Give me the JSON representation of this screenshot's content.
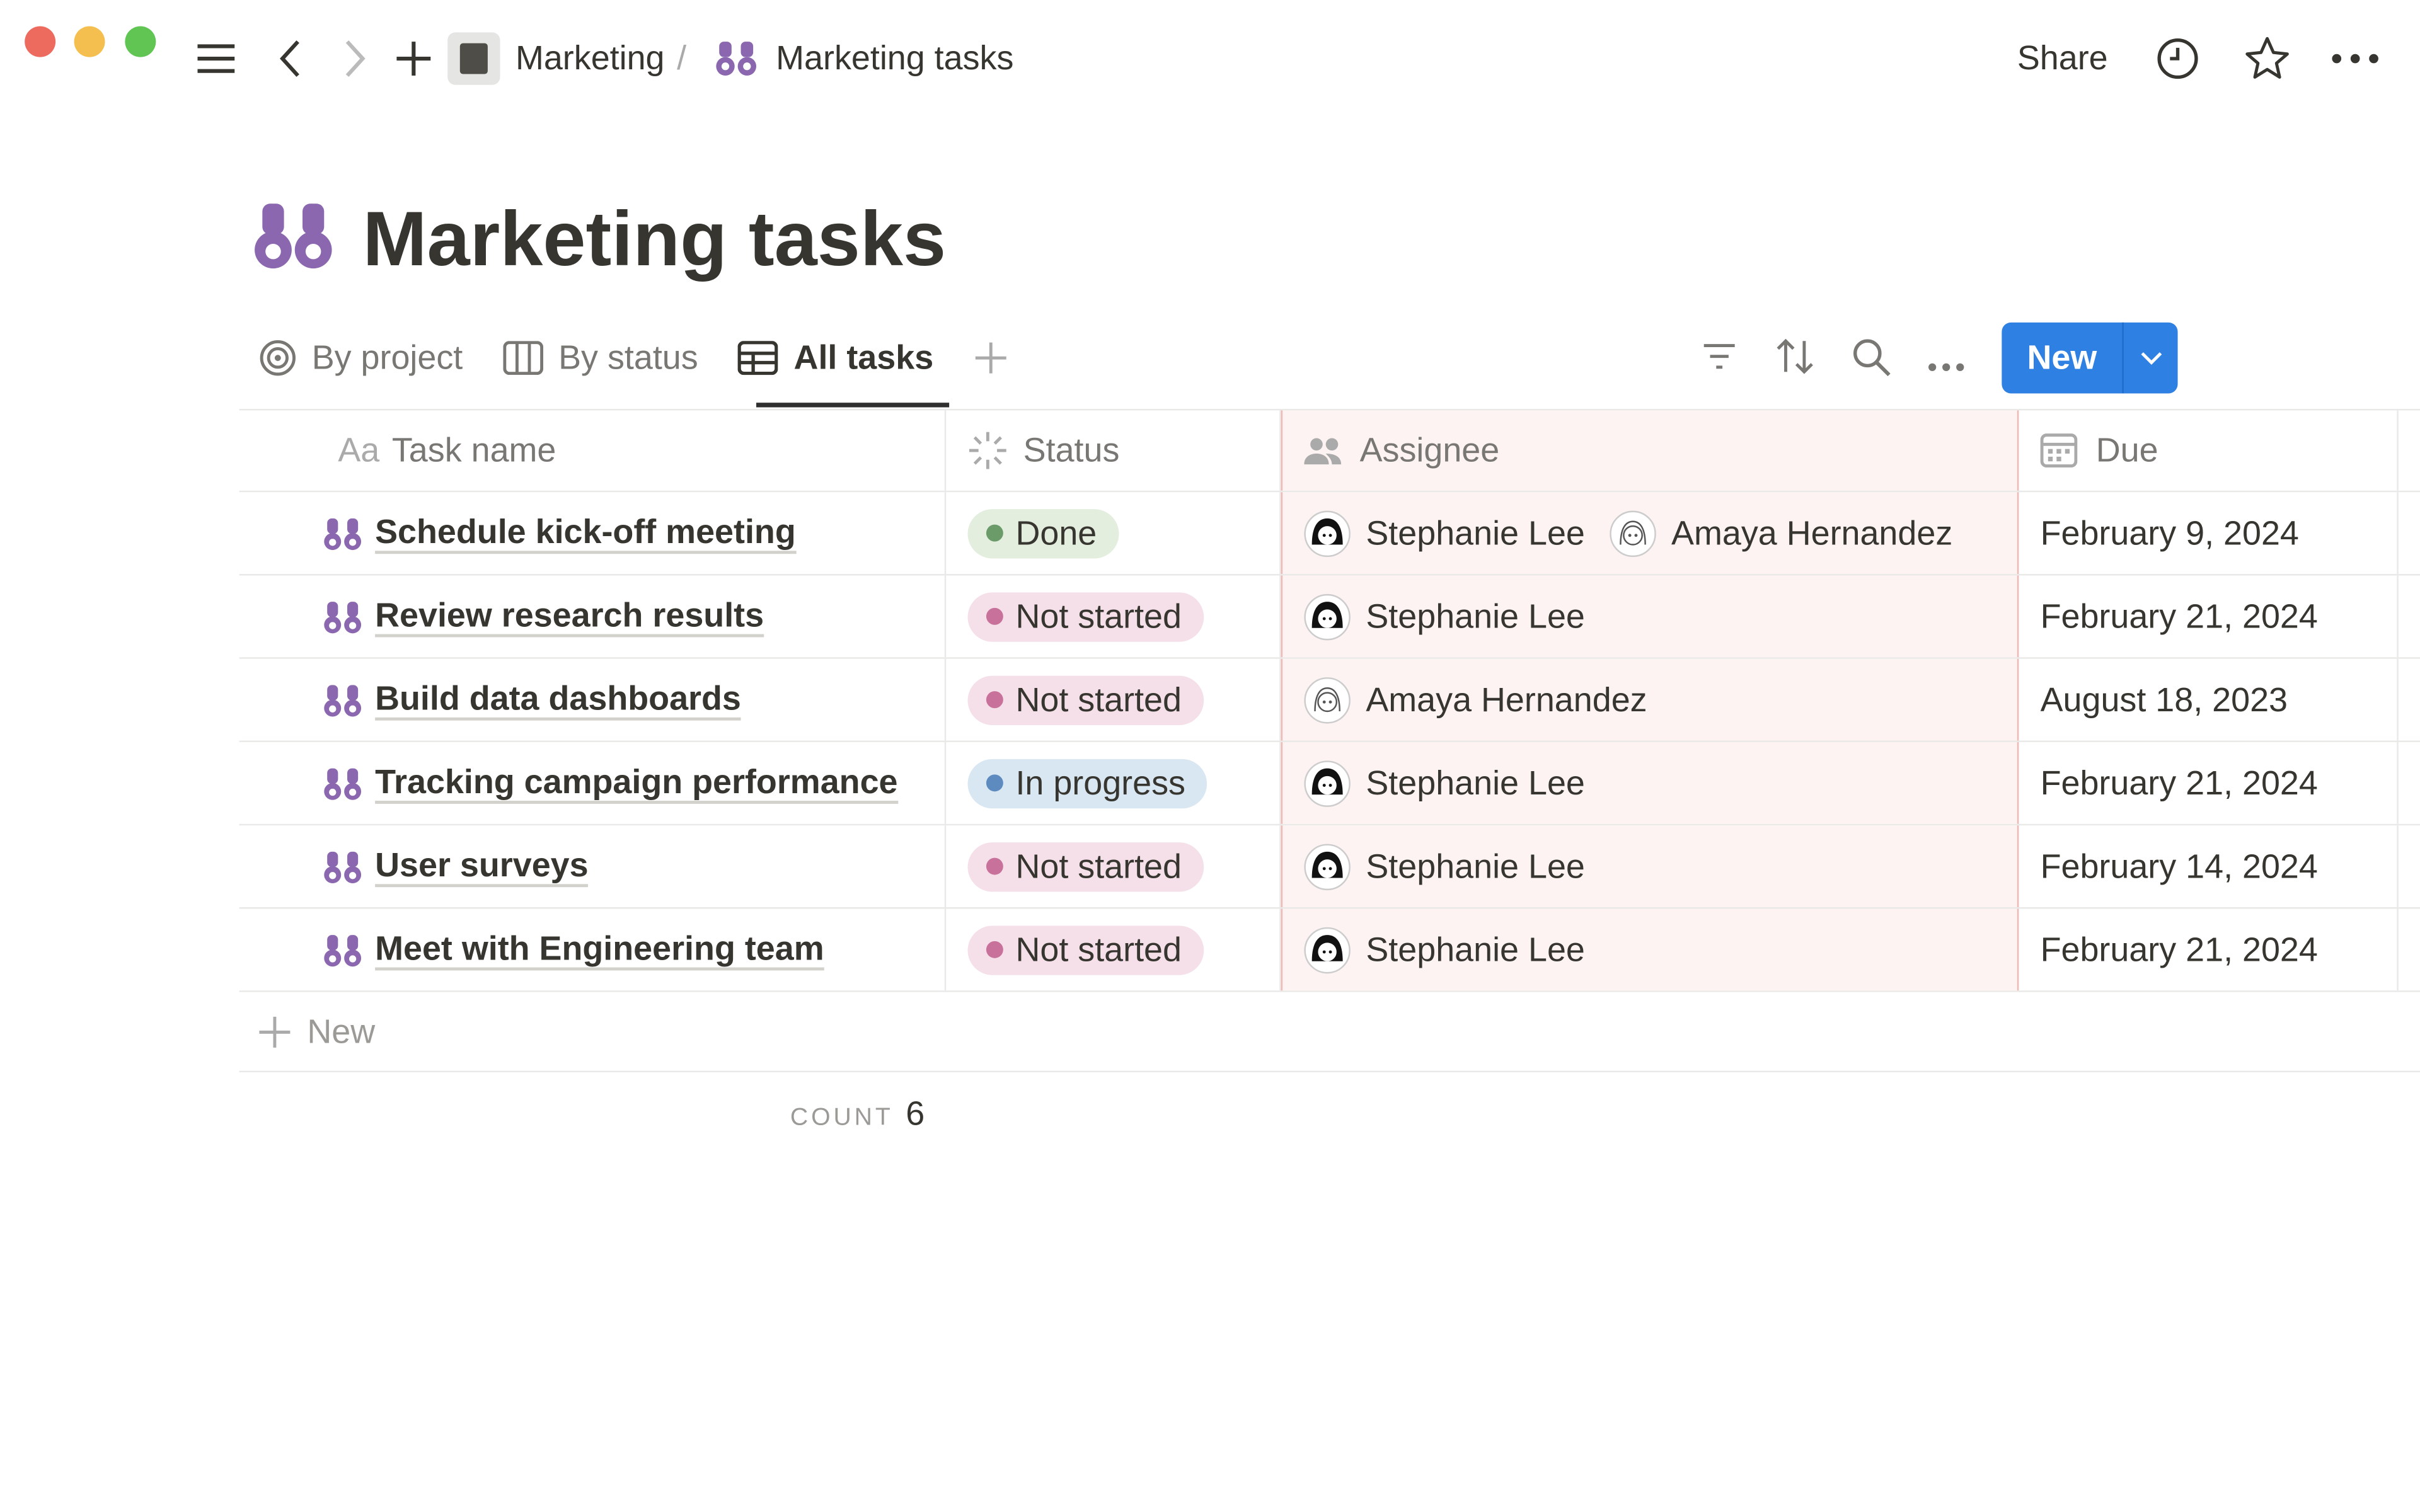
{
  "topbar": {
    "breadcrumb": [
      {
        "label": "Marketing"
      },
      {
        "label": "Marketing tasks"
      }
    ],
    "separator": "/",
    "share_label": "Share"
  },
  "page": {
    "title": "Marketing tasks",
    "accent": "#8b67b0"
  },
  "views": {
    "tabs": [
      {
        "label": "By project",
        "icon": "target-icon"
      },
      {
        "label": "By status",
        "icon": "board-icon"
      },
      {
        "label": "All tasks",
        "icon": "table-icon",
        "active": true
      }
    ],
    "new_label": "New"
  },
  "table": {
    "columns": [
      {
        "label": "Task name",
        "icon": "Aa"
      },
      {
        "label": "Status"
      },
      {
        "label": "Assignee"
      },
      {
        "label": "Due"
      }
    ],
    "rows": [
      {
        "name": "Schedule kick-off meeting",
        "status": "Done",
        "assignees": [
          "Stephanie Lee",
          "Amaya Hernandez"
        ],
        "due": "February 9, 2024"
      },
      {
        "name": "Review research results",
        "status": "Not started",
        "assignees": [
          "Stephanie Lee"
        ],
        "due": "February 21, 2024"
      },
      {
        "name": "Build data dashboards",
        "status": "Not started",
        "assignees": [
          "Amaya Hernandez"
        ],
        "due": "August 18, 2023"
      },
      {
        "name": "Tracking campaign performance",
        "status": "In progress",
        "assignees": [
          "Stephanie Lee"
        ],
        "due": "February 21, 2024"
      },
      {
        "name": "User surveys",
        "status": "Not started",
        "assignees": [
          "Stephanie Lee"
        ],
        "due": "February 14, 2024"
      },
      {
        "name": "Meet with Engineering team",
        "status": "Not started",
        "assignees": [
          "Stephanie Lee"
        ],
        "due": "February 21, 2024"
      }
    ],
    "new_row_label": "New",
    "count_label": "COUNT",
    "count_value": "6"
  },
  "status_colors": {
    "Done": {
      "bg": "#e3eedf",
      "dot": "#6c9b6a"
    },
    "Not started": {
      "bg": "#f5e0e9",
      "dot": "#c8719b"
    },
    "In progress": {
      "bg": "#d9e7f2",
      "dot": "#5e8bbf"
    }
  },
  "new_button_color": "#2f80e3"
}
